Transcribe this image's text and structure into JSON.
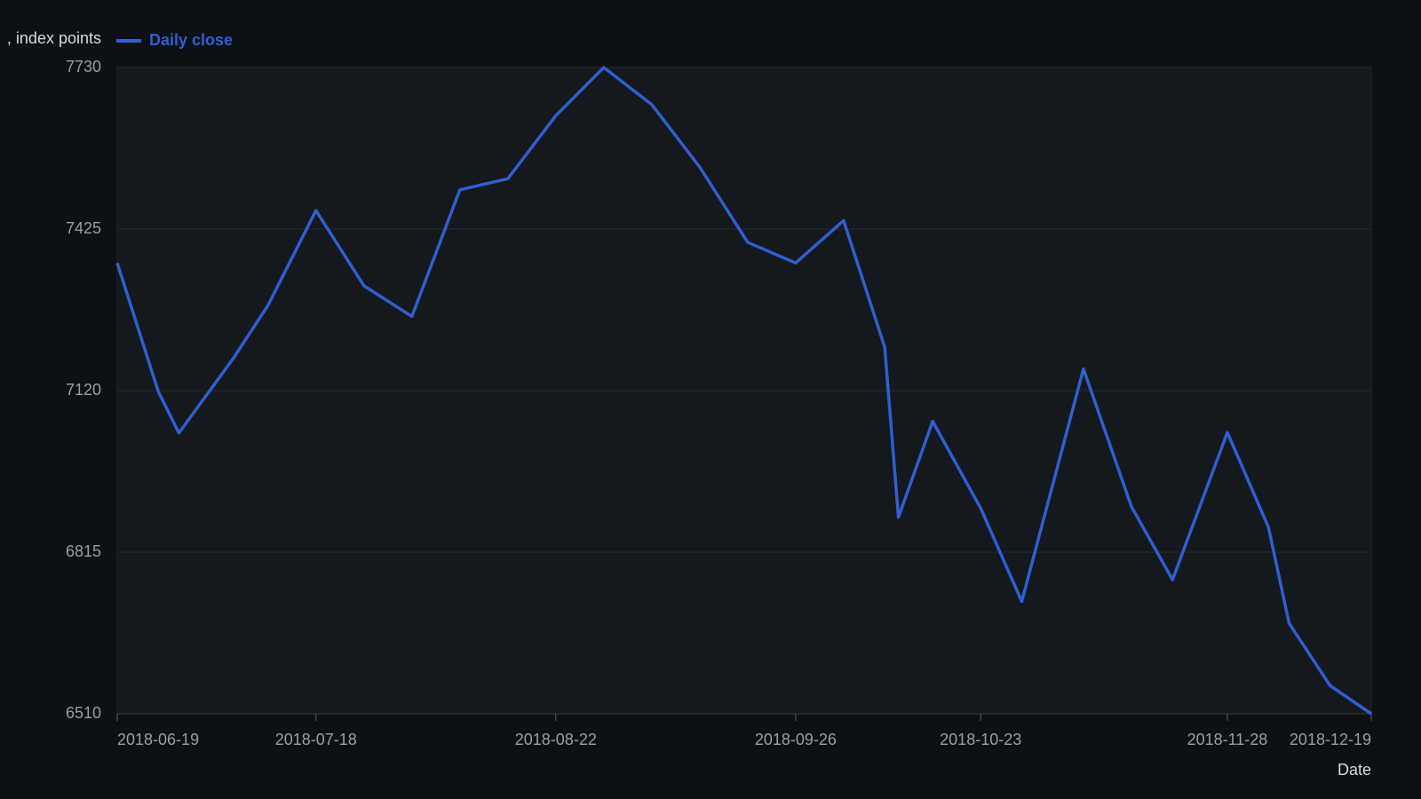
{
  "chart_data": {
    "type": "line",
    "y_label": ", index points",
    "x_label": "Date",
    "x": [
      "2018-06-19",
      "2018-06-25",
      "2018-06-28",
      "2018-07-06",
      "2018-07-11",
      "2018-07-18",
      "2018-07-25",
      "2018-08-01",
      "2018-08-08",
      "2018-08-15",
      "2018-08-22",
      "2018-08-29",
      "2018-09-05",
      "2018-09-12",
      "2018-09-19",
      "2018-09-26",
      "2018-10-03",
      "2018-10-09",
      "2018-10-11",
      "2018-10-16",
      "2018-10-23",
      "2018-10-29",
      "2018-11-07",
      "2018-11-14",
      "2018-11-20",
      "2018-11-28",
      "2018-12-04",
      "2018-12-07",
      "2018-12-13",
      "2018-12-19"
    ],
    "series": [
      {
        "name": "Daily close",
        "color": "#2f5fd0",
        "values": [
          7361,
          7118,
          7040,
          7182,
          7281,
          7460,
          7318,
          7260,
          7499,
          7520,
          7639,
          7730,
          7660,
          7542,
          7400,
          7361,
          7441,
          7202,
          6881,
          7062,
          6898,
          6722,
          7161,
          6901,
          6763,
          7041,
          6862,
          6681,
          6563,
          6510
        ]
      }
    ],
    "xlim": [
      "2018-06-19",
      "2018-12-19"
    ],
    "xticks": [
      "2018-06-19",
      "2018-07-18",
      "2018-08-22",
      "2018-09-26",
      "2018-10-23",
      "2018-11-28",
      "2018-12-19"
    ],
    "ylim": [
      6510,
      7730
    ],
    "yticks": [
      6510,
      6815,
      7120,
      7425,
      7730
    ],
    "grid": true
  }
}
